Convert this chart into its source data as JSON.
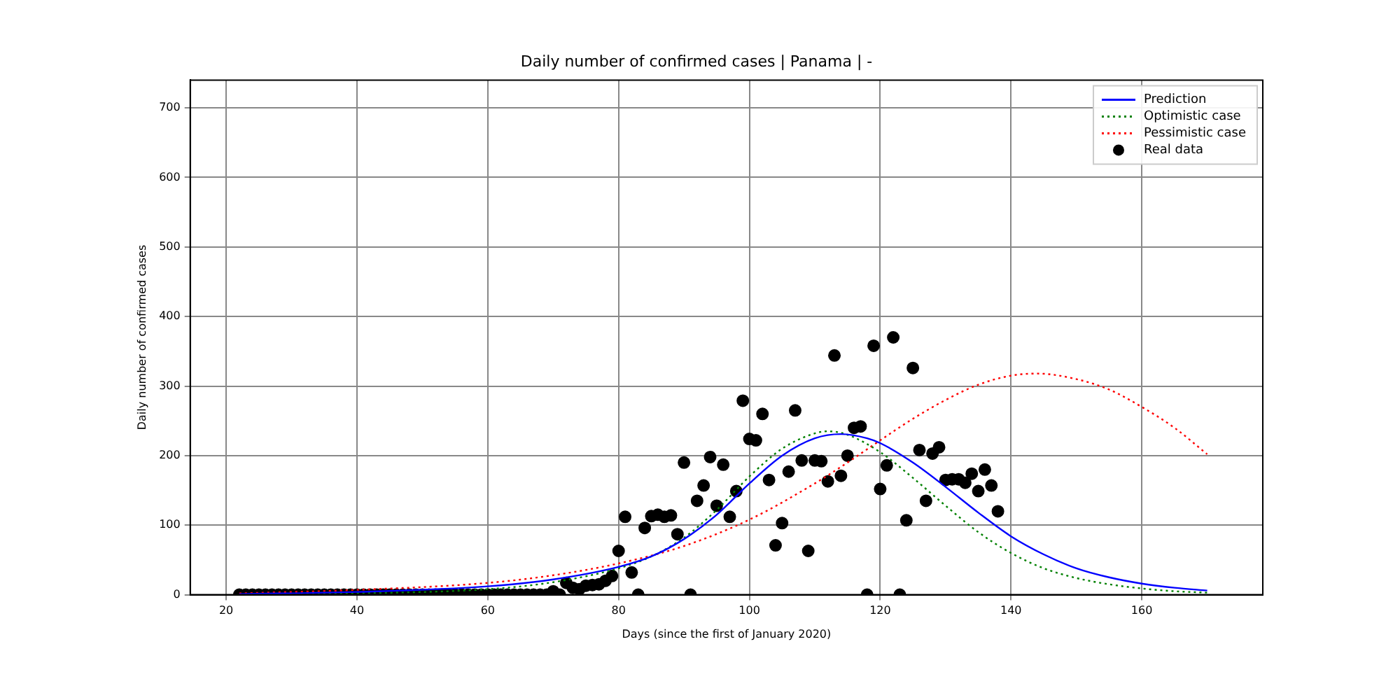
{
  "chart_data": {
    "type": "scatter",
    "title": "Daily number of confirmed cases | Panama | -",
    "xlabel": "Days (since the first of January 2020)",
    "ylabel": "Daily number of confirmed cases",
    "xlim": [
      14.5,
      178.5
    ],
    "xticks": [
      20,
      40,
      60,
      80,
      100,
      120,
      140,
      160
    ],
    "ylim": [
      0,
      740
    ],
    "yticks": [
      0,
      100,
      200,
      300,
      400,
      500,
      600,
      700
    ],
    "grid": true,
    "legend": "top right",
    "series": [
      {
        "name": "Prediction",
        "type": "line",
        "color": "#0000ff",
        "line_style": "solid",
        "marker": "none",
        "x": [
          22,
          40,
          60,
          70,
          80,
          85,
          90,
          95,
          100,
          105,
          110,
          114,
          118,
          120,
          125,
          130,
          135,
          140,
          145,
          150,
          155,
          160,
          165,
          170
        ],
        "values": [
          1,
          4,
          12,
          22,
          40,
          55,
          80,
          115,
          160,
          200,
          225,
          231,
          225,
          218,
          190,
          155,
          118,
          84,
          58,
          38,
          25,
          16,
          10,
          6
        ]
      },
      {
        "name": "Optimistic case",
        "type": "line",
        "color": "#008000",
        "line_style": "dotted",
        "marker": "none",
        "x": [
          22,
          40,
          60,
          70,
          80,
          85,
          90,
          95,
          100,
          105,
          110,
          112,
          115,
          120,
          125,
          130,
          135,
          140,
          145,
          150,
          155,
          160,
          165,
          170
        ],
        "values": [
          0,
          2,
          8,
          18,
          38,
          55,
          82,
          122,
          170,
          210,
          232,
          235,
          230,
          205,
          168,
          128,
          90,
          60,
          38,
          24,
          15,
          9,
          5,
          3
        ]
      },
      {
        "name": "Pessimistic case",
        "type": "line",
        "color": "#ff0000",
        "line_style": "dotted",
        "marker": "none",
        "x": [
          22,
          40,
          60,
          70,
          80,
          90,
          100,
          110,
          115,
          120,
          125,
          130,
          135,
          140,
          144,
          150,
          155,
          160,
          165,
          170
        ],
        "values": [
          2,
          7,
          17,
          28,
          45,
          70,
          108,
          160,
          190,
          222,
          253,
          280,
          302,
          315,
          318,
          310,
          295,
          270,
          240,
          202
        ]
      },
      {
        "name": "Real data",
        "type": "scatter",
        "color": "#000000",
        "marker": "circle",
        "x": [
          22,
          23,
          24,
          25,
          26,
          27,
          28,
          29,
          30,
          31,
          32,
          33,
          34,
          35,
          36,
          37,
          38,
          39,
          40,
          41,
          42,
          43,
          44,
          45,
          46,
          47,
          48,
          49,
          50,
          51,
          52,
          53,
          54,
          55,
          56,
          57,
          58,
          59,
          60,
          61,
          62,
          63,
          64,
          65,
          66,
          67,
          68,
          69,
          70,
          71,
          72,
          73,
          74,
          75,
          76,
          77,
          78,
          79,
          80,
          81,
          82,
          83,
          84,
          85,
          86,
          87,
          88,
          89,
          90,
          91,
          92,
          93,
          94,
          95,
          96,
          97,
          98,
          99,
          100,
          101,
          102,
          103,
          104,
          105,
          106,
          107,
          108,
          109,
          110,
          111,
          112,
          113,
          114,
          115,
          116,
          117,
          118,
          119,
          120,
          121,
          122,
          123,
          124,
          125,
          126,
          127,
          128,
          129,
          130,
          131,
          132,
          133,
          134,
          135,
          136,
          137,
          138
        ],
        "values": [
          0,
          0,
          0,
          0,
          0,
          0,
          0,
          0,
          0,
          0,
          0,
          0,
          0,
          0,
          0,
          0,
          0,
          0,
          0,
          0,
          0,
          0,
          0,
          0,
          0,
          0,
          0,
          0,
          0,
          0,
          0,
          0,
          0,
          0,
          0,
          0,
          0,
          0,
          0,
          0,
          0,
          0,
          0,
          0,
          0,
          0,
          0,
          0,
          5,
          0,
          17,
          10,
          8,
          13,
          14,
          15,
          20,
          27,
          63,
          112,
          32,
          0,
          96,
          113,
          115,
          112,
          114,
          87,
          190,
          0,
          135,
          157,
          198,
          128,
          187,
          112,
          149,
          279,
          224,
          222,
          260,
          165,
          71,
          103,
          177,
          265,
          193,
          63,
          193,
          192,
          163,
          344,
          171,
          200,
          240,
          242,
          0,
          358,
          152,
          186,
          370,
          0,
          107,
          326,
          208,
          135,
          203,
          212,
          165,
          166,
          166,
          161,
          174,
          149,
          180,
          157,
          120
        ]
      }
    ]
  }
}
